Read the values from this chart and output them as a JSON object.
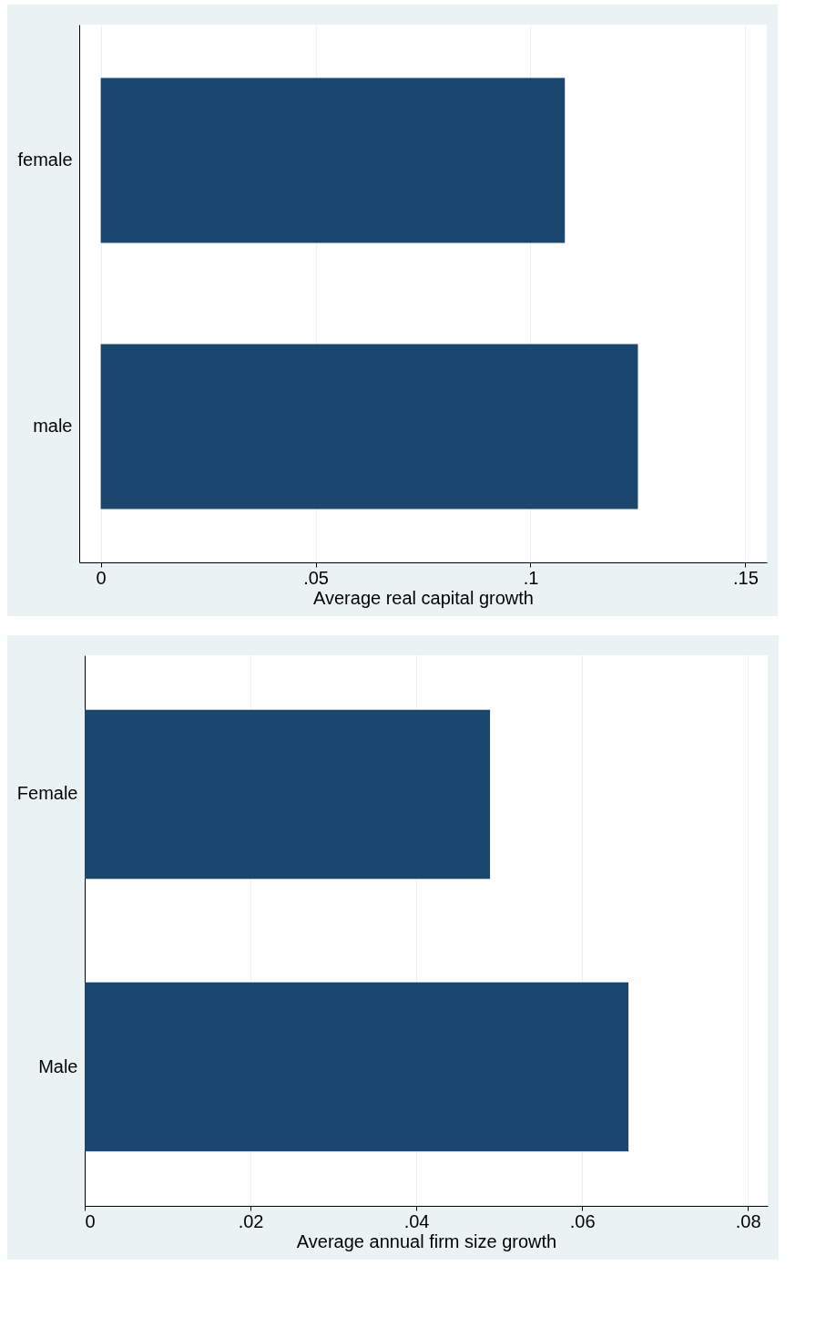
{
  "chart_data": [
    {
      "type": "bar",
      "orientation": "horizontal",
      "categories": [
        "female",
        "male"
      ],
      "values": [
        0.108,
        0.125
      ],
      "color": "#1a476f",
      "xlim": [
        -0.005,
        0.155
      ],
      "xticks": [
        0,
        {
          "value": 0.05,
          "label": ".05"
        },
        {
          "value": 0.1,
          "label": ".1"
        },
        {
          "value": 0.15,
          "label": ".15"
        }
      ],
      "xlabel": "Average real capital growth",
      "grid": "x"
    },
    {
      "type": "bar",
      "orientation": "horizontal",
      "categories": [
        "Female",
        "Male"
      ],
      "values": [
        0.0489,
        0.0656
      ],
      "color": "#1a476f",
      "xlim": [
        0,
        0.0824
      ],
      "xticks": [
        0,
        {
          "value": 0.02,
          "label": ".02"
        },
        {
          "value": 0.04,
          "label": ".04"
        },
        {
          "value": 0.06,
          "label": ".06"
        },
        {
          "value": 0.08,
          "label": ".08"
        }
      ],
      "xlabel": "Average annual firm size growth",
      "grid": "x"
    }
  ]
}
